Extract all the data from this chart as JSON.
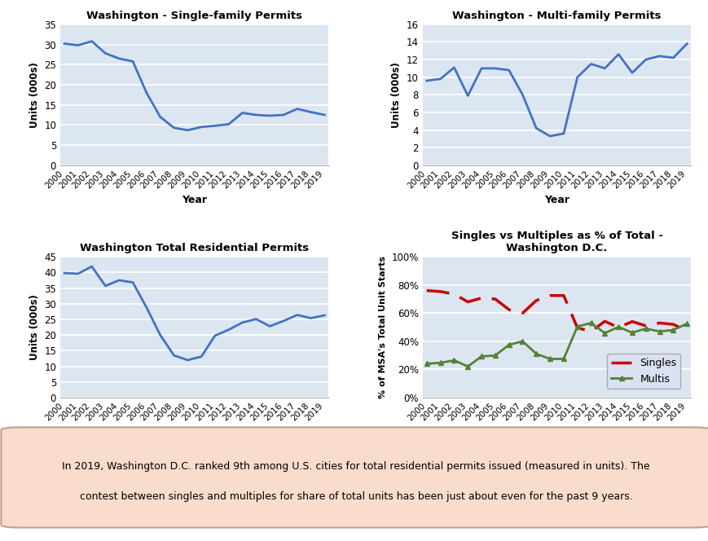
{
  "years": [
    2000,
    2001,
    2002,
    2003,
    2004,
    2005,
    2006,
    2007,
    2008,
    2009,
    2010,
    2011,
    2012,
    2013,
    2014,
    2015,
    2016,
    2017,
    2018,
    2019
  ],
  "single_family": [
    30.2,
    29.8,
    30.8,
    27.8,
    26.5,
    25.8,
    18.0,
    12.0,
    9.3,
    8.7,
    9.5,
    9.8,
    10.2,
    13.0,
    12.5,
    12.3,
    12.5,
    14.0,
    13.2,
    12.5
  ],
  "multi_family": [
    9.6,
    9.8,
    11.1,
    7.9,
    11.0,
    11.0,
    10.8,
    8.0,
    4.2,
    3.3,
    3.6,
    10.0,
    11.5,
    11.0,
    12.6,
    10.5,
    12.0,
    12.4,
    12.2,
    13.8
  ],
  "total": [
    39.8,
    39.6,
    41.9,
    35.7,
    37.5,
    36.8,
    28.8,
    20.0,
    13.5,
    12.0,
    13.1,
    19.8,
    21.7,
    24.0,
    25.1,
    22.8,
    24.5,
    26.4,
    25.4,
    26.3
  ],
  "singles_pct": [
    76.0,
    75.3,
    73.5,
    68.0,
    70.7,
    70.0,
    62.5,
    60.0,
    69.0,
    72.5,
    72.5,
    49.5,
    47.0,
    54.2,
    49.8,
    54.0,
    51.0,
    53.0,
    52.0,
    47.5
  ],
  "multis_pct": [
    24.1,
    24.7,
    26.5,
    22.1,
    29.3,
    29.9,
    37.5,
    40.0,
    31.1,
    27.5,
    27.5,
    50.5,
    53.0,
    45.8,
    50.2,
    46.1,
    49.0,
    47.0,
    48.0,
    52.5
  ],
  "line_color": "#4472C4",
  "singles_color": "#CC0000",
  "multis_color": "#548235",
  "bg_color": "#DCE6F1",
  "title1": "Washington - Single-family Permits",
  "title2": "Washington - Multi-family Permits",
  "title3": "Washington Total Residential Permits",
  "title4": "Singles vs Multiples as % of Total -\nWashington D.C.",
  "ylabel1": "Units (000s)",
  "ylabel2": "Units (000s)",
  "ylabel3": "Units (000s)",
  "ylabel4": "% of MSA's Total Unit Starts",
  "xlabel": "Year",
  "footnote_line1": "In 2019, Washington D.C. ranked 9th among U.S. cities for total residential permits issued (measured in units). The",
  "footnote_line2": "contest between singles and multiples for share of total units has been just about even for the past 9 years.",
  "ylim1": [
    0,
    35
  ],
  "ylim2": [
    0,
    16
  ],
  "ylim3": [
    0,
    45
  ],
  "yticks1": [
    0,
    5,
    10,
    15,
    20,
    25,
    30,
    35
  ],
  "yticks2": [
    0,
    2,
    4,
    6,
    8,
    10,
    12,
    14,
    16
  ],
  "yticks3": [
    0,
    5,
    10,
    15,
    20,
    25,
    30,
    35,
    40,
    45
  ],
  "yticks4_labels": [
    "0%",
    "20%",
    "40%",
    "60%",
    "80%",
    "100%"
  ],
  "yticks4_vals": [
    0,
    20,
    40,
    60,
    80,
    100
  ],
  "footnote_bg": "#FADCCC",
  "footnote_border": "#C0A090",
  "legend_bg": "#D9E1F2"
}
